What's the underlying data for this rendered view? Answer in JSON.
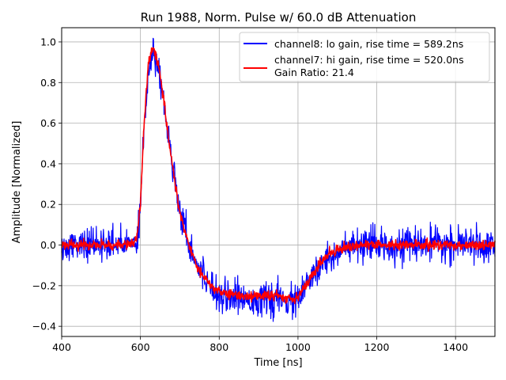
{
  "chart_data": {
    "type": "line",
    "title": "Run 1988, Norm. Pulse w/ 60.0 dB Attenuation",
    "xlabel": "Time [ns]",
    "ylabel": "Amplitude [Normalized]",
    "xlim": [
      400,
      1500
    ],
    "ylim": [
      -0.45,
      1.07
    ],
    "xticks": [
      400,
      600,
      800,
      1000,
      1200,
      1400
    ],
    "yticks": [
      -0.4,
      -0.2,
      0.0,
      0.2,
      0.4,
      0.6,
      0.8,
      1.0
    ],
    "ytick_labels": [
      "−0.4",
      "−0.2",
      "0.0",
      "0.2",
      "0.4",
      "0.6",
      "0.8",
      "1.0"
    ],
    "grid": true,
    "legend_position": "top-right",
    "legend_note": "Gain Ratio: 21.4",
    "series": [
      {
        "name": "channel8: lo gain, rise time = 589.2ns",
        "color": "#0000ff",
        "noise": 0.04,
        "x": [
          400,
          560,
          590,
          600,
          610,
          620,
          630,
          640,
          650,
          660,
          670,
          680,
          690,
          700,
          720,
          740,
          760,
          780,
          800,
          850,
          900,
          950,
          970,
          990,
          1000,
          1020,
          1040,
          1060,
          1080,
          1100,
          1150,
          1200,
          1300,
          1400,
          1500
        ],
        "y": [
          0.0,
          0.0,
          0.02,
          0.2,
          0.6,
          0.85,
          0.95,
          0.9,
          0.82,
          0.7,
          0.55,
          0.42,
          0.3,
          0.18,
          0.03,
          -0.08,
          -0.15,
          -0.2,
          -0.24,
          -0.26,
          -0.27,
          -0.27,
          -0.28,
          -0.28,
          -0.26,
          -0.21,
          -0.15,
          -0.1,
          -0.06,
          -0.03,
          -0.01,
          0.0,
          0.0,
          0.0,
          0.0
        ]
      },
      {
        "name": "channel7: hi gain, rise time = 520.0ns",
        "color": "#ff0000",
        "noise": 0.012,
        "x": [
          400,
          560,
          590,
          600,
          610,
          620,
          630,
          640,
          650,
          660,
          670,
          680,
          690,
          700,
          720,
          740,
          760,
          780,
          800,
          850,
          900,
          950,
          970,
          990,
          1000,
          1020,
          1040,
          1060,
          1080,
          1100,
          1150,
          1200,
          1300,
          1400,
          1500
        ],
        "y": [
          0.0,
          0.0,
          0.02,
          0.2,
          0.62,
          0.88,
          0.98,
          0.93,
          0.83,
          0.7,
          0.55,
          0.41,
          0.28,
          0.16,
          0.02,
          -0.09,
          -0.16,
          -0.2,
          -0.23,
          -0.25,
          -0.25,
          -0.25,
          -0.26,
          -0.26,
          -0.25,
          -0.2,
          -0.14,
          -0.08,
          -0.04,
          -0.02,
          0.0,
          0.0,
          0.0,
          0.0,
          0.0
        ]
      }
    ]
  }
}
